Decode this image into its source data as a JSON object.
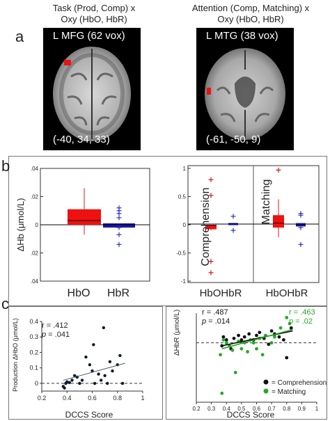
{
  "panel_a": {
    "letter": "a",
    "left": {
      "title_line1": "Task (Prod, Comp) x",
      "title_line2": "Oxy (HbO, HbR)",
      "label": "L MFG (62 vox)",
      "coords": "(-40, 34, 33)"
    },
    "right": {
      "title_line1": "Attention (Comp, Matching) x",
      "title_line2": "Oxy (HbO, HbR)",
      "label": "L MTG (38 vox)",
      "coords": "(-61, -50, 9)"
    }
  },
  "panel_b": {
    "letter": "b",
    "ylabel": "ΔHb (μmol/L)",
    "xlabel_hbo": "HbO",
    "xlabel_hbr": "HbR",
    "xlabel_pair1": "HbOHbR",
    "xlabel_pair2": "HbOHbR",
    "label_comprehension": "Comprehension",
    "label_matching": "Matching",
    "colors": {
      "hbo": "#ee1111",
      "hbr": "#1a1aa0",
      "hbo_outlier": "#dd1111",
      "hbr_outlier": "#3030c0"
    }
  },
  "panel_c": {
    "letter": "c",
    "left_stats": {
      "r": "r = .412",
      "p_label": "p",
      "p_value": " = .041"
    },
    "right_stats_black": {
      "r": "r = .487",
      "p_label": "p",
      "p_value": " = .014"
    },
    "right_stats_green": {
      "r": "r = .463",
      "p_label": "p",
      "p_value": " = .02"
    },
    "left_ylabel": "Production ΔHbO (μmol/L)",
    "right_ylabel": "ΔHbR (μmol/L)",
    "left_xlabel": "DCCS Score",
    "right_xlabel": "DCCS Score",
    "legend_comprehension": "= Comprehension",
    "legend_matching": "= Matching",
    "colors": {
      "black": "#111111",
      "green": "#22aa22"
    }
  },
  "chart_data": [
    {
      "type": "box",
      "title": "",
      "ylabel": "ΔHb (μmol/L)",
      "ylim": [
        -0.04,
        0.04
      ],
      "yticks": [
        ".04",
        ".02",
        "0",
        ".02",
        ".04"
      ],
      "categories": [
        "HbO",
        "HbR"
      ],
      "boxes": [
        {
          "name": "HbO",
          "q1": 0.0,
          "median": 0.003,
          "q3": 0.011,
          "whisker_low": -0.007,
          "whisker_high": 0.026,
          "outliers": []
        },
        {
          "name": "HbR",
          "q1": -0.002,
          "median": 0.0,
          "q3": 0.001,
          "whisker_low": -0.002,
          "whisker_high": 0.001,
          "outliers": [
            0.012,
            0.01,
            0.008,
            0.005,
            -0.002,
            -0.007,
            -0.014
          ]
        }
      ]
    },
    {
      "type": "box",
      "title": "",
      "ylim": [
        -1,
        1
      ],
      "yticks": [
        "1",
        "0.5",
        "0",
        "-0.5",
        "-1"
      ],
      "groups": [
        "Comprehension",
        "Matching"
      ],
      "categories": [
        "HbO",
        "HbR",
        "HbO",
        "HbR"
      ],
      "boxes": [
        {
          "group": "Comprehension",
          "name": "HbO",
          "q1": -0.08,
          "median": -0.01,
          "q3": 0.0,
          "whisker_low": -0.1,
          "whisker_high": 0.0,
          "outliers": [
            0.8,
            0.52,
            -0.65,
            -0.85
          ]
        },
        {
          "group": "Comprehension",
          "name": "HbR",
          "q1": 0.0,
          "median": 0.02,
          "q3": 0.03,
          "whisker_low": 0.0,
          "whisker_high": 0.03,
          "outliers": [
            0.15,
            -0.1
          ]
        },
        {
          "group": "Matching",
          "name": "HbO",
          "q1": -0.05,
          "median": 0.03,
          "q3": 0.17,
          "whisker_low": -0.22,
          "whisker_high": 0.45,
          "outliers": [
            0.97
          ]
        },
        {
          "group": "Matching",
          "name": "HbR",
          "q1": -0.03,
          "median": 0.0,
          "q3": 0.03,
          "whisker_low": -0.03,
          "whisker_high": 0.03,
          "outliers": [
            0.2,
            0.17,
            -0.05,
            -0.35
          ]
        }
      ]
    },
    {
      "type": "scatter",
      "title": "",
      "xlabel": "DCCS Score",
      "ylabel": "Production ΔHbO (μmol/L)",
      "xlim": [
        0.2,
        1.0
      ],
      "ylim": [
        -0.05,
        0.4
      ],
      "xticks": [
        "0.2",
        "0.4",
        "0.6",
        "0.8",
        "1"
      ],
      "yticks": [
        "0",
        "0.1",
        "0.2",
        "0.3",
        "0.4"
      ],
      "series": [
        {
          "points": [
            [
              0.37,
              -0.02
            ],
            [
              0.38,
              -0.03
            ],
            [
              0.39,
              0.0
            ],
            [
              0.4,
              0.01
            ],
            [
              0.42,
              0.005
            ],
            [
              0.44,
              0.02
            ],
            [
              0.46,
              0.05
            ],
            [
              0.48,
              0.04
            ],
            [
              0.5,
              0.0
            ],
            [
              0.52,
              0.02
            ],
            [
              0.55,
              0.17
            ],
            [
              0.58,
              0.12
            ],
            [
              0.6,
              0.08
            ],
            [
              0.61,
              0.25
            ],
            [
              0.62,
              0.0
            ],
            [
              0.65,
              0.06
            ],
            [
              0.67,
              0.02
            ],
            [
              0.69,
              0.36
            ],
            [
              0.7,
              0.05
            ],
            [
              0.72,
              0.0
            ],
            [
              0.74,
              0.14
            ],
            [
              0.76,
              0.08
            ],
            [
              0.8,
              0.12
            ],
            [
              0.82,
              0.18
            ],
            [
              0.84,
              0.0
            ]
          ]
        }
      ],
      "fit_line": [
        [
          0.37,
          0.02
        ],
        [
          0.86,
          0.13
        ]
      ]
    },
    {
      "type": "scatter",
      "title": "",
      "xlabel": "DCCS Score",
      "ylabel": "ΔHbR (μmol/L)",
      "xlim": [
        0.2,
        1.0
      ],
      "ylim": [
        -0.4,
        0.2
      ],
      "xticks": [
        "0.2",
        "0.3",
        "0.4",
        "0.5",
        "0.6",
        "0.7",
        "0.8",
        "0.9",
        "1"
      ],
      "series": [
        {
          "name": "Comprehension",
          "points": [
            [
              0.37,
              -0.02
            ],
            [
              0.38,
              0.04
            ],
            [
              0.4,
              0.02
            ],
            [
              0.43,
              -0.04
            ],
            [
              0.45,
              0.03
            ],
            [
              0.48,
              0.05
            ],
            [
              0.5,
              0.02
            ],
            [
              0.52,
              0.04
            ],
            [
              0.55,
              0.06
            ],
            [
              0.58,
              0.02
            ],
            [
              0.6,
              0.05
            ],
            [
              0.62,
              0.07
            ],
            [
              0.65,
              0.03
            ],
            [
              0.68,
              -0.01
            ],
            [
              0.7,
              0.08
            ],
            [
              0.72,
              0.06
            ],
            [
              0.75,
              0.04
            ],
            [
              0.78,
              0.02
            ],
            [
              0.8,
              -0.1
            ],
            [
              0.83,
              0.1
            ]
          ]
        },
        {
          "name": "Matching",
          "points": [
            [
              0.36,
              -0.08
            ],
            [
              0.37,
              -0.34
            ],
            [
              0.38,
              0.02
            ],
            [
              0.4,
              0.0
            ],
            [
              0.42,
              -0.02
            ],
            [
              0.44,
              -0.05
            ],
            [
              0.46,
              -0.2
            ],
            [
              0.48,
              0.01
            ],
            [
              0.5,
              -0.04
            ],
            [
              0.52,
              0.0
            ],
            [
              0.54,
              -0.06
            ],
            [
              0.56,
              0.02
            ],
            [
              0.58,
              0.0
            ],
            [
              0.6,
              -0.04
            ],
            [
              0.62,
              0.03
            ],
            [
              0.64,
              -0.08
            ],
            [
              0.66,
              0.05
            ],
            [
              0.7,
              0.0
            ],
            [
              0.72,
              0.04
            ],
            [
              0.76,
              0.1
            ],
            [
              0.8,
              0.17
            ],
            [
              0.82,
              0.13
            ]
          ]
        }
      ],
      "fit_lines": [
        {
          "name": "Comprehension",
          "points": [
            [
              0.37,
              -0.02
            ],
            [
              0.84,
              0.08
            ]
          ]
        },
        {
          "name": "Matching",
          "points": [
            [
              0.37,
              -0.04
            ],
            [
              0.84,
              0.09
            ]
          ]
        }
      ]
    }
  ]
}
